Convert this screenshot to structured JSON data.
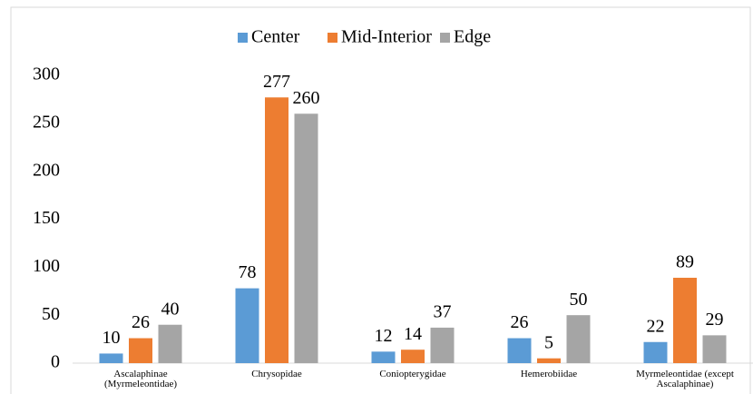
{
  "chart_data": {
    "type": "bar",
    "categories": [
      "Ascalaphinae (Myrmeleontidae)",
      "Chrysopidae",
      "Coniopterygidae",
      "Hemerobiidae",
      "Myrmeleontidae (except Ascalaphinae)"
    ],
    "series": [
      {
        "name": "Center",
        "color": "#5b9bd5",
        "values": [
          10,
          78,
          12,
          26,
          22
        ]
      },
      {
        "name": "Mid-Interior",
        "color": "#ed7d31",
        "values": [
          26,
          277,
          14,
          5,
          89
        ]
      },
      {
        "name": "Edge",
        "color": "#a5a5a5",
        "values": [
          40,
          260,
          37,
          50,
          29
        ]
      }
    ],
    "ylim": [
      0,
      300
    ],
    "yticks": [
      0,
      50,
      100,
      150,
      200,
      250,
      300
    ],
    "grid": false,
    "legend": "top"
  }
}
